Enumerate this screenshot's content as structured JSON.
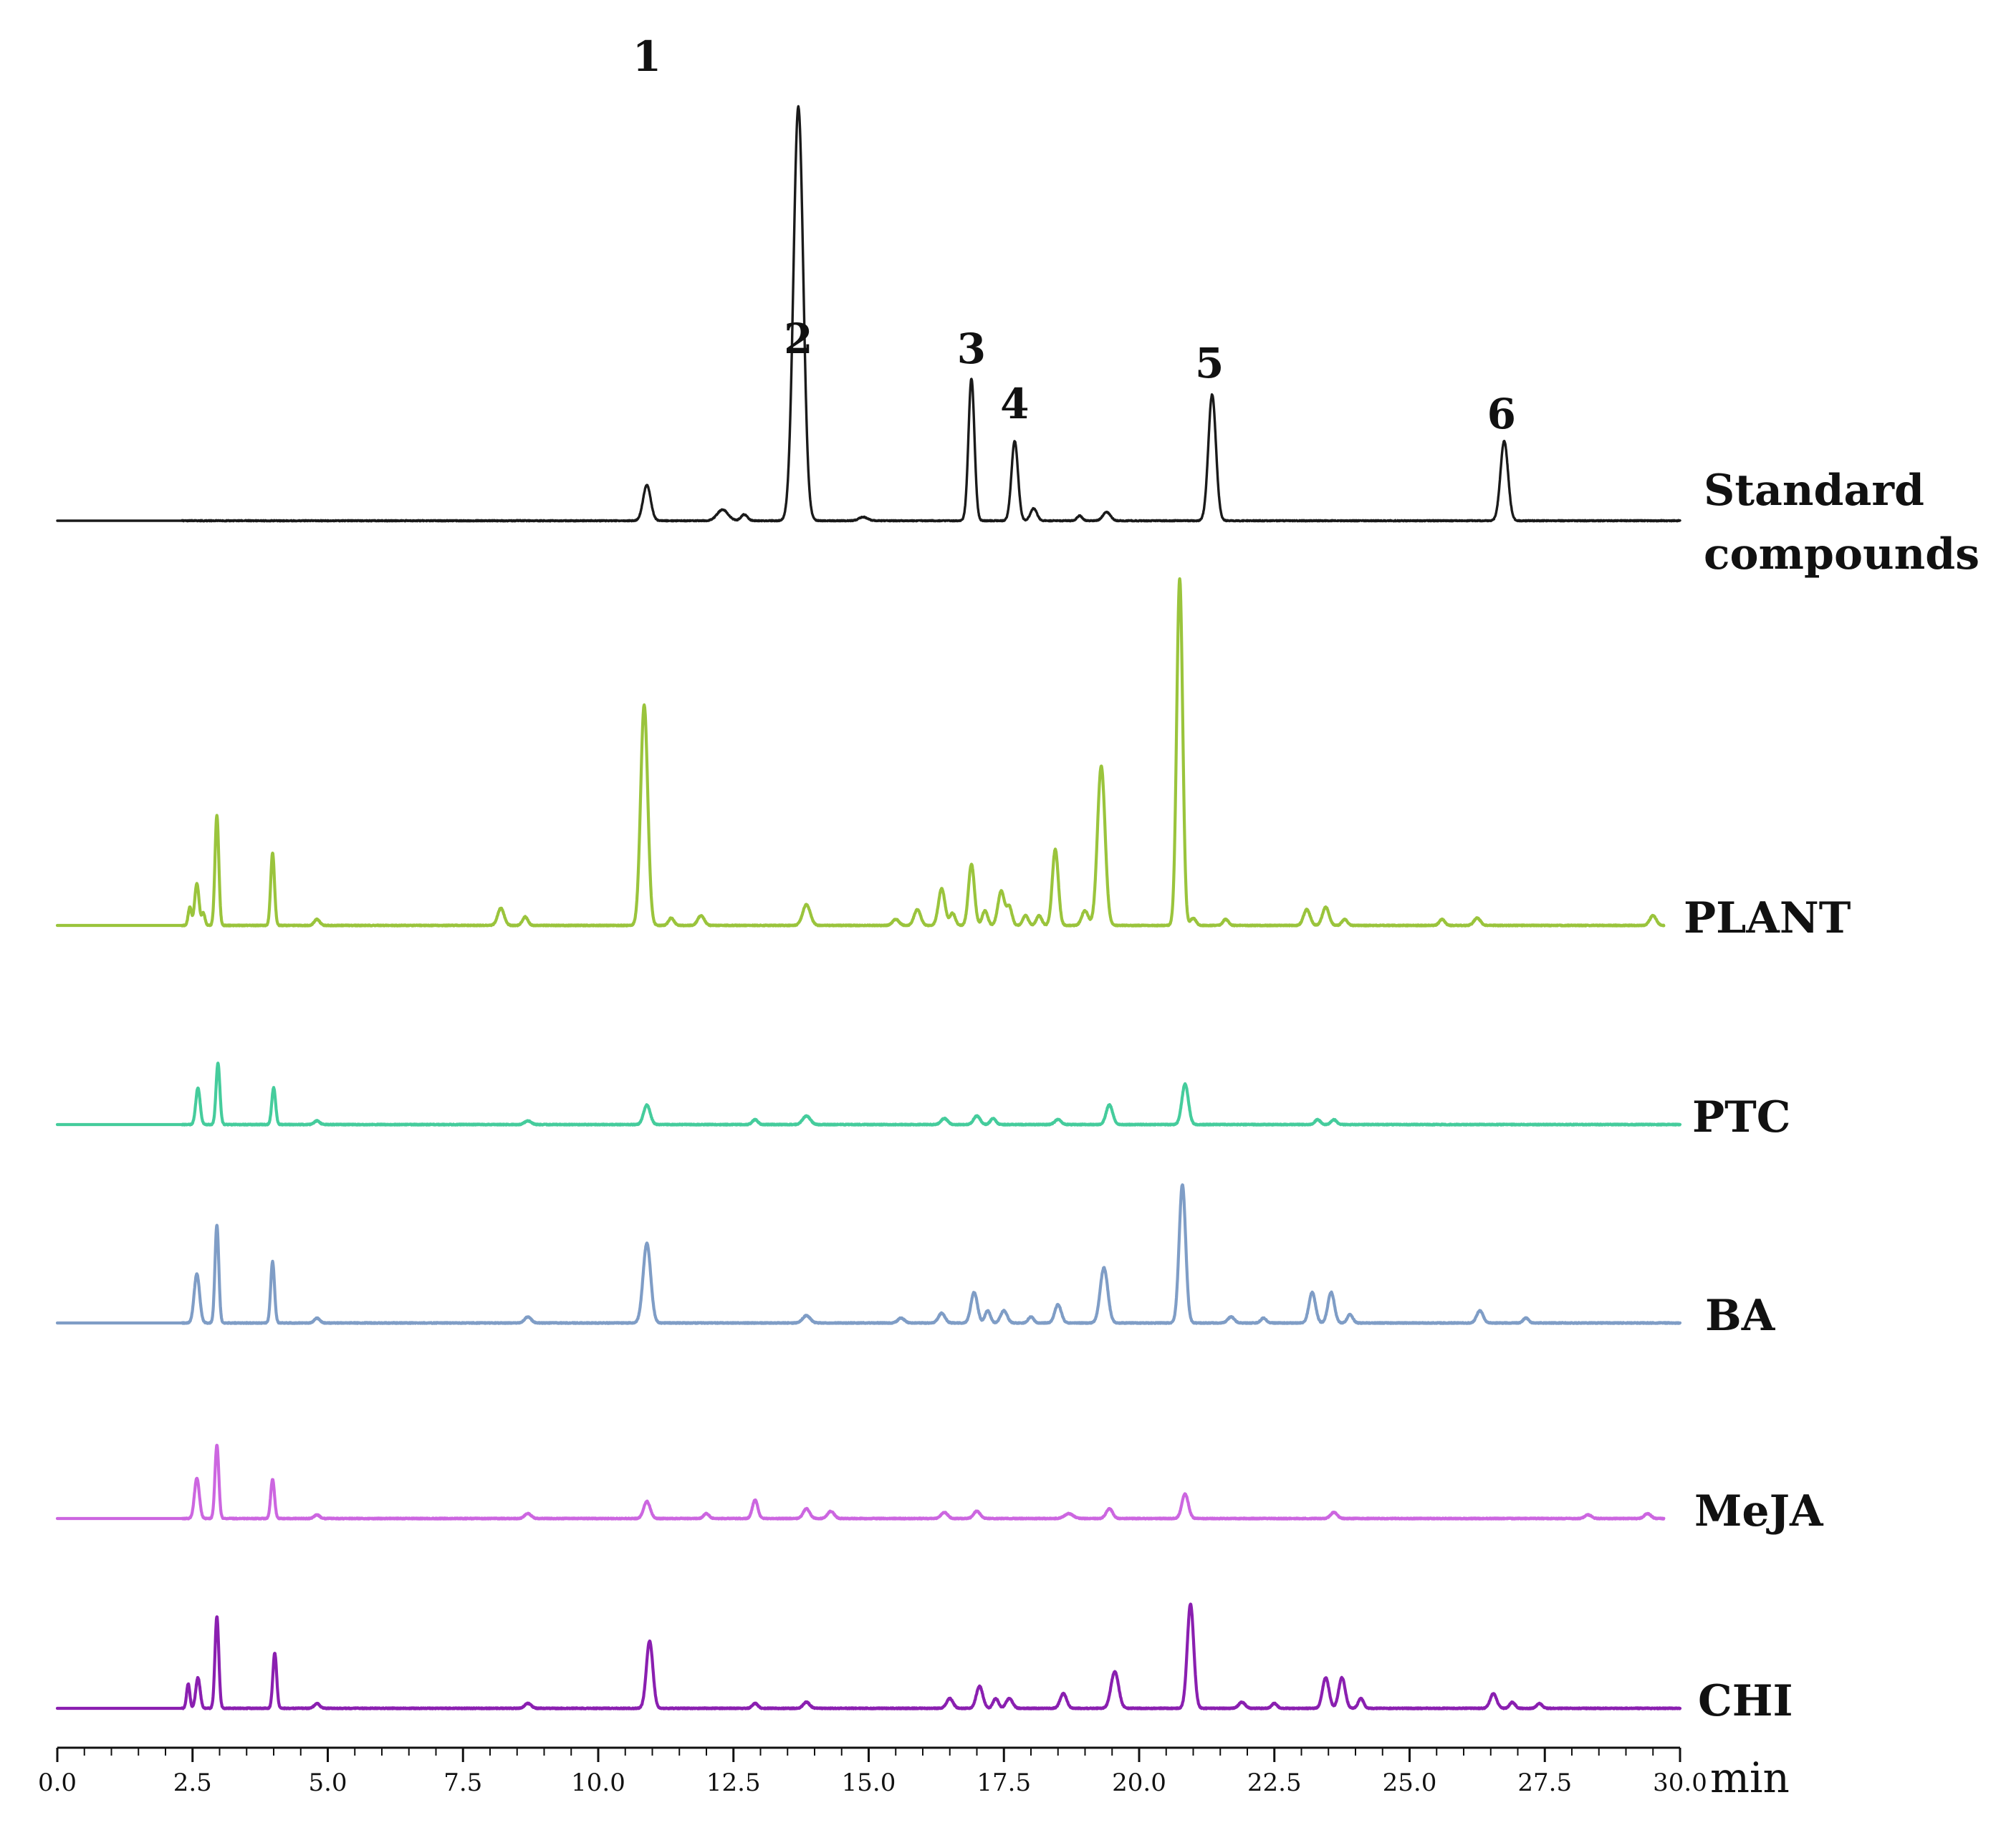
{
  "chart_data": {
    "type": "line",
    "xlabel": "min",
    "xlim": [
      0.0,
      30.0
    ],
    "x_ticks": [
      "0.0",
      "2.5",
      "5.0",
      "7.5",
      "10.0",
      "12.5",
      "15.0",
      "17.5",
      "20.0",
      "22.5",
      "25.0",
      "27.5",
      "30.0"
    ],
    "x_minor_step": 0.5,
    "peak_labels": [
      {
        "label": "1",
        "x": 10.9
      },
      {
        "label": "2",
        "x": 13.7
      },
      {
        "label": "3",
        "x": 16.9
      },
      {
        "label": "4",
        "x": 17.7
      },
      {
        "label": "5",
        "x": 21.3
      },
      {
        "label": "6",
        "x": 26.7
      }
    ],
    "series": [
      {
        "name": "Standard compounds",
        "label_lines": [
          "Standard",
          "compounds"
        ],
        "color": "#1a1a1a",
        "x_end": 30.0,
        "peaks": [
          [
            10.9,
            29,
            0.07
          ],
          [
            12.3,
            9,
            0.1
          ],
          [
            12.7,
            5,
            0.06
          ],
          [
            13.7,
            338,
            0.09
          ],
          [
            14.9,
            3,
            0.08
          ],
          [
            16.9,
            116,
            0.055
          ],
          [
            17.7,
            65,
            0.06
          ],
          [
            18.05,
            10,
            0.06
          ],
          [
            18.9,
            4,
            0.05
          ],
          [
            19.4,
            7,
            0.07
          ],
          [
            21.35,
            103,
            0.07
          ],
          [
            26.75,
            65,
            0.07
          ]
        ]
      },
      {
        "name": "PLANT",
        "color": "#9ac43c",
        "x_end": 29.7,
        "peaks": [
          [
            2.45,
            15,
            0.03
          ],
          [
            2.58,
            34,
            0.04
          ],
          [
            2.7,
            10,
            0.03
          ],
          [
            2.95,
            90,
            0.035
          ],
          [
            3.98,
            59,
            0.035
          ],
          [
            4.8,
            5,
            0.05
          ],
          [
            8.2,
            14,
            0.06
          ],
          [
            8.65,
            7,
            0.05
          ],
          [
            10.85,
            180,
            0.065
          ],
          [
            11.35,
            6,
            0.05
          ],
          [
            11.9,
            8,
            0.06
          ],
          [
            13.85,
            17,
            0.07
          ],
          [
            15.5,
            5,
            0.06
          ],
          [
            15.9,
            13,
            0.06
          ],
          [
            16.35,
            30,
            0.06
          ],
          [
            16.55,
            10,
            0.05
          ],
          [
            16.9,
            50,
            0.055
          ],
          [
            17.15,
            12,
            0.05
          ],
          [
            17.45,
            28,
            0.06
          ],
          [
            17.6,
            15,
            0.05
          ],
          [
            17.9,
            8,
            0.05
          ],
          [
            18.15,
            8,
            0.05
          ],
          [
            18.45,
            62,
            0.055
          ],
          [
            19.0,
            12,
            0.06
          ],
          [
            19.3,
            130,
            0.07
          ],
          [
            20.75,
            283,
            0.055
          ],
          [
            21.0,
            6,
            0.05
          ],
          [
            21.6,
            5,
            0.05
          ],
          [
            23.1,
            13,
            0.06
          ],
          [
            23.45,
            15,
            0.06
          ],
          [
            23.8,
            5,
            0.05
          ],
          [
            25.6,
            5,
            0.05
          ],
          [
            26.25,
            6,
            0.06
          ],
          [
            29.5,
            8,
            0.06
          ]
        ]
      },
      {
        "name": "PTC",
        "color": "#45cc9c",
        "x_end": 30.0,
        "peaks": [
          [
            2.6,
            30,
            0.04
          ],
          [
            2.97,
            50,
            0.035
          ],
          [
            4.0,
            30,
            0.035
          ],
          [
            4.8,
            3,
            0.05
          ],
          [
            8.7,
            3,
            0.06
          ],
          [
            10.9,
            16,
            0.06
          ],
          [
            12.9,
            4,
            0.05
          ],
          [
            13.85,
            7,
            0.07
          ],
          [
            16.4,
            5,
            0.06
          ],
          [
            17.0,
            7,
            0.06
          ],
          [
            17.3,
            5,
            0.05
          ],
          [
            18.5,
            4,
            0.06
          ],
          [
            19.45,
            16,
            0.06
          ],
          [
            20.85,
            33,
            0.06
          ],
          [
            23.3,
            4,
            0.05
          ],
          [
            23.6,
            4,
            0.05
          ]
        ]
      },
      {
        "name": "BA",
        "color": "#7f9dc6",
        "x_end": 30.0,
        "peaks": [
          [
            2.58,
            40,
            0.05
          ],
          [
            2.95,
            80,
            0.035
          ],
          [
            3.98,
            50,
            0.035
          ],
          [
            4.8,
            4,
            0.05
          ],
          [
            8.7,
            5,
            0.06
          ],
          [
            10.9,
            65,
            0.07
          ],
          [
            13.85,
            6,
            0.07
          ],
          [
            15.6,
            4,
            0.06
          ],
          [
            16.35,
            8,
            0.06
          ],
          [
            16.95,
            25,
            0.06
          ],
          [
            17.2,
            10,
            0.05
          ],
          [
            17.5,
            10,
            0.06
          ],
          [
            18.0,
            5,
            0.05
          ],
          [
            18.5,
            15,
            0.06
          ],
          [
            19.35,
            45,
            0.07
          ],
          [
            20.8,
            113,
            0.06
          ],
          [
            21.7,
            5,
            0.06
          ],
          [
            22.3,
            4,
            0.05
          ],
          [
            23.2,
            25,
            0.06
          ],
          [
            23.55,
            25,
            0.06
          ],
          [
            23.9,
            7,
            0.05
          ],
          [
            26.3,
            10,
            0.06
          ],
          [
            27.15,
            4,
            0.05
          ]
        ]
      },
      {
        "name": "MeJA",
        "color": "#cc66e0",
        "x_end": 29.7,
        "peaks": [
          [
            2.58,
            33,
            0.045
          ],
          [
            2.95,
            60,
            0.035
          ],
          [
            3.98,
            32,
            0.035
          ],
          [
            4.8,
            3,
            0.05
          ],
          [
            8.7,
            4,
            0.06
          ],
          [
            10.9,
            14,
            0.06
          ],
          [
            12.0,
            4,
            0.05
          ],
          [
            12.9,
            15,
            0.05
          ],
          [
            13.85,
            8,
            0.06
          ],
          [
            14.3,
            6,
            0.06
          ],
          [
            16.4,
            5,
            0.06
          ],
          [
            17.0,
            6,
            0.06
          ],
          [
            18.7,
            4,
            0.08
          ],
          [
            19.45,
            8,
            0.06
          ],
          [
            20.85,
            20,
            0.06
          ],
          [
            23.6,
            5,
            0.06
          ],
          [
            28.3,
            3,
            0.06
          ],
          [
            29.4,
            4,
            0.06
          ]
        ]
      },
      {
        "name": "CHI",
        "color": "#8a1fb0",
        "x_end": 30.0,
        "peaks": [
          [
            2.42,
            20,
            0.03
          ],
          [
            2.6,
            25,
            0.04
          ],
          [
            2.95,
            75,
            0.035
          ],
          [
            4.02,
            45,
            0.035
          ],
          [
            4.8,
            4,
            0.05
          ],
          [
            8.7,
            4,
            0.06
          ],
          [
            10.95,
            55,
            0.06
          ],
          [
            12.9,
            4,
            0.05
          ],
          [
            13.85,
            5,
            0.06
          ],
          [
            16.5,
            8,
            0.06
          ],
          [
            17.05,
            18,
            0.06
          ],
          [
            17.35,
            8,
            0.05
          ],
          [
            17.6,
            8,
            0.06
          ],
          [
            18.6,
            12,
            0.06
          ],
          [
            19.55,
            30,
            0.07
          ],
          [
            20.95,
            85,
            0.06
          ],
          [
            21.9,
            5,
            0.06
          ],
          [
            22.5,
            4,
            0.05
          ],
          [
            23.45,
            25,
            0.06
          ],
          [
            23.75,
            25,
            0.06
          ],
          [
            24.1,
            8,
            0.05
          ],
          [
            26.55,
            12,
            0.06
          ],
          [
            26.9,
            5,
            0.05
          ],
          [
            27.4,
            4,
            0.05
          ]
        ]
      }
    ]
  }
}
